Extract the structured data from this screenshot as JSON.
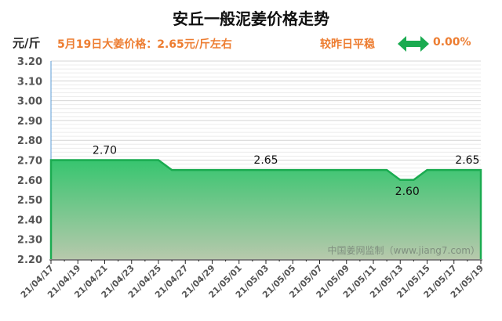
{
  "header": {
    "title": "安丘一般泥姜价格走势",
    "unit": "元/斤",
    "price_note": "5月19日大姜价格：2.65元/斤左右",
    "change_label": "较昨日平稳",
    "change_icon": "left-right-arrow-icon",
    "change_value": "0.00%"
  },
  "watermark": "中国姜网监制（www.jiang7.com）",
  "colors": {
    "accent_orange": "#ed7d31",
    "line_green": "#1aab50",
    "fill_top": "#37c56f",
    "fill_bottom": "#b7c9ac",
    "axis_blue": "#5b9bd5"
  },
  "chart_data": {
    "type": "area",
    "title": "安丘一般泥姜价格走势",
    "xlabel": "",
    "ylabel": "元/斤",
    "ylim": [
      2.2,
      3.2
    ],
    "yticks": [
      "3.20",
      "3.10",
      "3.00",
      "2.90",
      "2.80",
      "2.70",
      "2.60",
      "2.50",
      "2.40",
      "2.30",
      "2.20"
    ],
    "xticks": [
      "21/04/17",
      "21/04/19",
      "21/04/21",
      "21/04/23",
      "21/04/25",
      "21/04/27",
      "21/04/29",
      "21/05/01",
      "21/05/03",
      "21/05/05",
      "21/05/07",
      "21/05/09",
      "21/05/11",
      "21/05/13",
      "21/05/15",
      "21/05/17",
      "21/05/19"
    ],
    "grid": true,
    "legend": "none",
    "x": [
      "21/04/17",
      "21/04/18",
      "21/04/19",
      "21/04/20",
      "21/04/21",
      "21/04/22",
      "21/04/23",
      "21/04/24",
      "21/04/25",
      "21/04/26",
      "21/04/27",
      "21/04/28",
      "21/04/29",
      "21/04/30",
      "21/05/01",
      "21/05/02",
      "21/05/03",
      "21/05/04",
      "21/05/05",
      "21/05/06",
      "21/05/07",
      "21/05/08",
      "21/05/09",
      "21/05/10",
      "21/05/11",
      "21/05/12",
      "21/05/13",
      "21/05/14",
      "21/05/15",
      "21/05/16",
      "21/05/17",
      "21/05/18",
      "21/05/19"
    ],
    "series": [
      {
        "name": "安丘一般泥姜价格",
        "values": [
          2.7,
          2.7,
          2.7,
          2.7,
          2.7,
          2.7,
          2.7,
          2.7,
          2.7,
          2.65,
          2.65,
          2.65,
          2.65,
          2.65,
          2.65,
          2.65,
          2.65,
          2.65,
          2.65,
          2.65,
          2.65,
          2.65,
          2.65,
          2.65,
          2.65,
          2.65,
          2.6,
          2.6,
          2.65,
          2.65,
          2.65,
          2.65,
          2.65
        ]
      }
    ],
    "annotations": [
      {
        "x": "21/04/21",
        "text": "2.70"
      },
      {
        "x": "21/05/03",
        "text": "2.65"
      },
      {
        "x": "21/05/13",
        "text": "2.60"
      },
      {
        "x": "21/05/18",
        "text": "2.65"
      }
    ]
  }
}
